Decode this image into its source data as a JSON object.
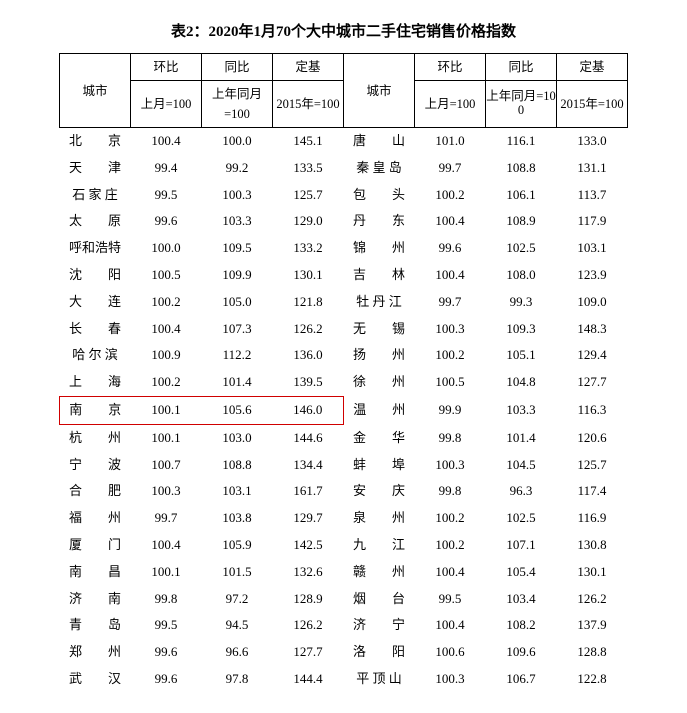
{
  "title": "表2：2020年1月70个大中城市二手住宅销售价格指数",
  "headers": {
    "city": "城市",
    "mom": "环比",
    "yoy": "同比",
    "base": "定基",
    "mom_sub": "上月=100",
    "yoy_sub": "上年同月=100",
    "yoy_sub_wrapped_a": "上年同月=10",
    "yoy_sub_wrapped_b": "0",
    "base_sub": "2015年=100"
  },
  "highlight_row_index": 10,
  "highlight_color": "#d00000",
  "font_family": "SimSun",
  "background_color": "#ffffff",
  "left": [
    {
      "city": "北　　京",
      "mom": "100.4",
      "yoy": "100.0",
      "base": "145.1"
    },
    {
      "city": "天　　津",
      "mom": "99.4",
      "yoy": "99.2",
      "base": "133.5"
    },
    {
      "city": "石 家 庄",
      "mom": "99.5",
      "yoy": "100.3",
      "base": "125.7"
    },
    {
      "city": "太　　原",
      "mom": "99.6",
      "yoy": "103.3",
      "base": "129.0"
    },
    {
      "city": "呼和浩特",
      "mom": "100.0",
      "yoy": "109.5",
      "base": "133.2"
    },
    {
      "city": "沈　　阳",
      "mom": "100.5",
      "yoy": "109.9",
      "base": "130.1"
    },
    {
      "city": "大　　连",
      "mom": "100.2",
      "yoy": "105.0",
      "base": "121.8"
    },
    {
      "city": "长　　春",
      "mom": "100.4",
      "yoy": "107.3",
      "base": "126.2"
    },
    {
      "city": "哈 尔 滨",
      "mom": "100.9",
      "yoy": "112.2",
      "base": "136.0"
    },
    {
      "city": "上　　海",
      "mom": "100.2",
      "yoy": "101.4",
      "base": "139.5"
    },
    {
      "city": "南　　京",
      "mom": "100.1",
      "yoy": "105.6",
      "base": "146.0"
    },
    {
      "city": "杭　　州",
      "mom": "100.1",
      "yoy": "103.0",
      "base": "144.6"
    },
    {
      "city": "宁　　波",
      "mom": "100.7",
      "yoy": "108.8",
      "base": "134.4"
    },
    {
      "city": "合　　肥",
      "mom": "100.3",
      "yoy": "103.1",
      "base": "161.7"
    },
    {
      "city": "福　　州",
      "mom": "99.7",
      "yoy": "103.8",
      "base": "129.7"
    },
    {
      "city": "厦　　门",
      "mom": "100.4",
      "yoy": "105.9",
      "base": "142.5"
    },
    {
      "city": "南　　昌",
      "mom": "100.1",
      "yoy": "101.5",
      "base": "132.6"
    },
    {
      "city": "济　　南",
      "mom": "99.8",
      "yoy": "97.2",
      "base": "128.9"
    },
    {
      "city": "青　　岛",
      "mom": "99.5",
      "yoy": "94.5",
      "base": "126.2"
    },
    {
      "city": "郑　　州",
      "mom": "99.6",
      "yoy": "96.6",
      "base": "127.7"
    },
    {
      "city": "武　　汉",
      "mom": "99.6",
      "yoy": "97.8",
      "base": "144.4"
    }
  ],
  "right": [
    {
      "city": "唐　　山",
      "mom": "101.0",
      "yoy": "116.1",
      "base": "133.0"
    },
    {
      "city": "秦 皇 岛",
      "mom": "99.7",
      "yoy": "108.8",
      "base": "131.1"
    },
    {
      "city": "包　　头",
      "mom": "100.2",
      "yoy": "106.1",
      "base": "113.7"
    },
    {
      "city": "丹　　东",
      "mom": "100.4",
      "yoy": "108.9",
      "base": "117.9"
    },
    {
      "city": "锦　　州",
      "mom": "99.6",
      "yoy": "102.5",
      "base": "103.1"
    },
    {
      "city": "吉　　林",
      "mom": "100.4",
      "yoy": "108.0",
      "base": "123.9"
    },
    {
      "city": "牡 丹 江",
      "mom": "99.7",
      "yoy": "99.3",
      "base": "109.0"
    },
    {
      "city": "无　　锡",
      "mom": "100.3",
      "yoy": "109.3",
      "base": "148.3"
    },
    {
      "city": "扬　　州",
      "mom": "100.2",
      "yoy": "105.1",
      "base": "129.4"
    },
    {
      "city": "徐　　州",
      "mom": "100.5",
      "yoy": "104.8",
      "base": "127.7"
    },
    {
      "city": "温　　州",
      "mom": "99.9",
      "yoy": "103.3",
      "base": "116.3"
    },
    {
      "city": "金　　华",
      "mom": "99.8",
      "yoy": "101.4",
      "base": "120.6"
    },
    {
      "city": "蚌　　埠",
      "mom": "100.3",
      "yoy": "104.5",
      "base": "125.7"
    },
    {
      "city": "安　　庆",
      "mom": "99.8",
      "yoy": "96.3",
      "base": "117.4"
    },
    {
      "city": "泉　　州",
      "mom": "100.2",
      "yoy": "102.5",
      "base": "116.9"
    },
    {
      "city": "九　　江",
      "mom": "100.2",
      "yoy": "107.1",
      "base": "130.8"
    },
    {
      "city": "赣　　州",
      "mom": "100.4",
      "yoy": "105.4",
      "base": "130.1"
    },
    {
      "city": "烟　　台",
      "mom": "99.5",
      "yoy": "103.4",
      "base": "126.2"
    },
    {
      "city": "济　　宁",
      "mom": "100.4",
      "yoy": "108.2",
      "base": "137.9"
    },
    {
      "city": "洛　　阳",
      "mom": "100.6",
      "yoy": "109.6",
      "base": "128.8"
    },
    {
      "city": "平 顶 山",
      "mom": "100.3",
      "yoy": "106.7",
      "base": "122.8"
    }
  ]
}
